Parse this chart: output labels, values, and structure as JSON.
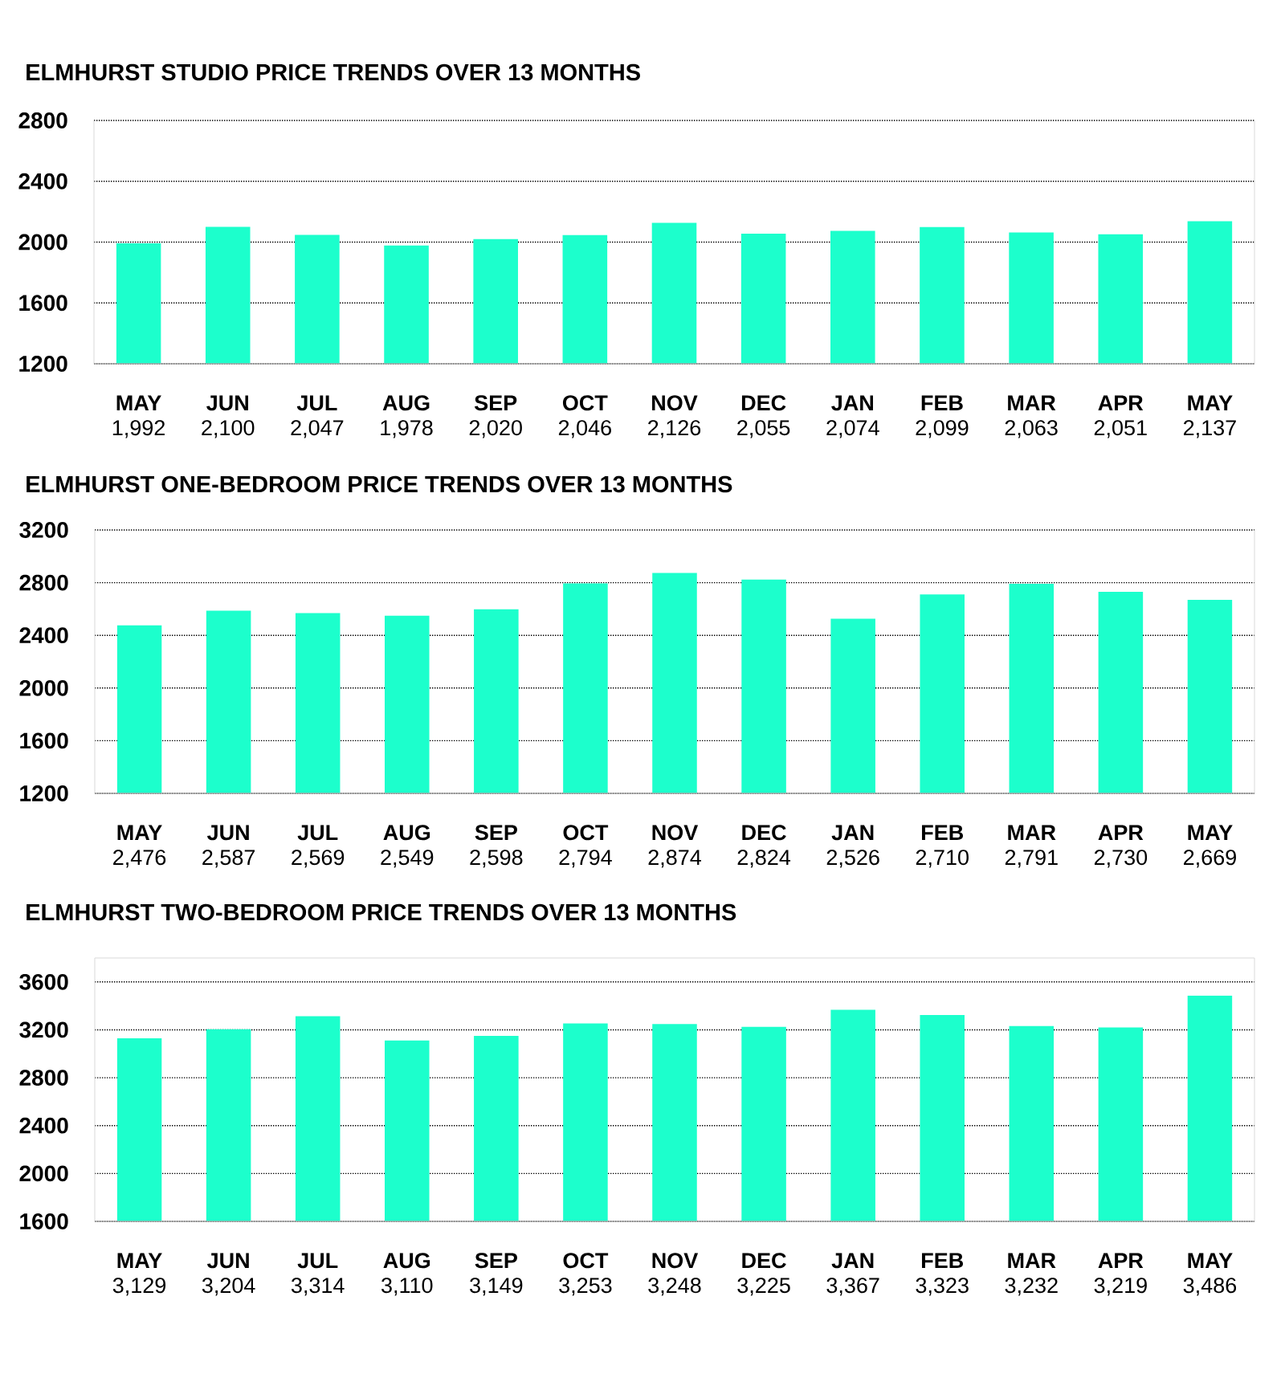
{
  "chart_data": [
    {
      "type": "bar",
      "title": "ELMHURST STUDIO PRICE TRENDS OVER 13 MONTHS",
      "categories": [
        "MAY",
        "JUN",
        "JUL",
        "AUG",
        "SEP",
        "OCT",
        "NOV",
        "DEC",
        "JAN",
        "FEB",
        "MAR",
        "APR",
        "MAY"
      ],
      "values": [
        1992,
        2100,
        2047,
        1978,
        2020,
        2046,
        2126,
        2055,
        2074,
        2099,
        2063,
        2051,
        2137
      ],
      "value_labels": [
        "1,992",
        "2,100",
        "2,047",
        "1,978",
        "2,020",
        "2,046",
        "2,126",
        "2,055",
        "2,074",
        "2,099",
        "2,063",
        "2,051",
        "2,137"
      ],
      "color": "#1cffcc",
      "ylim": [
        1200,
        2800
      ],
      "yticks": [
        1200,
        1600,
        2000,
        2400,
        2800
      ],
      "grid": "y"
    },
    {
      "type": "bar",
      "title": "ELMHURST ONE-BEDROOM PRICE TRENDS OVER 13 MONTHS",
      "categories": [
        "MAY",
        "JUN",
        "JUL",
        "AUG",
        "SEP",
        "OCT",
        "NOV",
        "DEC",
        "JAN",
        "FEB",
        "MAR",
        "APR",
        "MAY"
      ],
      "values": [
        2476,
        2587,
        2569,
        2549,
        2598,
        2794,
        2874,
        2824,
        2526,
        2710,
        2791,
        2730,
        2669
      ],
      "value_labels": [
        "2,476",
        "2,587",
        "2,569",
        "2,549",
        "2,598",
        "2,794",
        "2,874",
        "2,824",
        "2,526",
        "2,710",
        "2,791",
        "2,730",
        "2,669"
      ],
      "color": "#1cffcc",
      "ylim": [
        1200,
        3200
      ],
      "yticks": [
        1200,
        1600,
        2000,
        2400,
        2800,
        3200
      ],
      "grid": "y"
    },
    {
      "type": "bar",
      "title": "ELMHURST TWO-BEDROOM PRICE TRENDS OVER 13 MONTHS",
      "categories": [
        "MAY",
        "JUN",
        "JUL",
        "AUG",
        "SEP",
        "OCT",
        "NOV",
        "DEC",
        "JAN",
        "FEB",
        "MAR",
        "APR",
        "MAY"
      ],
      "values": [
        3129,
        3204,
        3314,
        3110,
        3149,
        3253,
        3248,
        3225,
        3367,
        3323,
        3232,
        3219,
        3486
      ],
      "value_labels": [
        "3,129",
        "3,204",
        "3,314",
        "3,110",
        "3,149",
        "3,253",
        "3,248",
        "3,225",
        "3,367",
        "3,323",
        "3,232",
        "3,219",
        "3,486"
      ],
      "color": "#1cffcc",
      "ylim": [
        1600,
        3800
      ],
      "yticks": [
        1600,
        2000,
        2400,
        2800,
        3200,
        3600
      ],
      "grid": "y"
    }
  ]
}
